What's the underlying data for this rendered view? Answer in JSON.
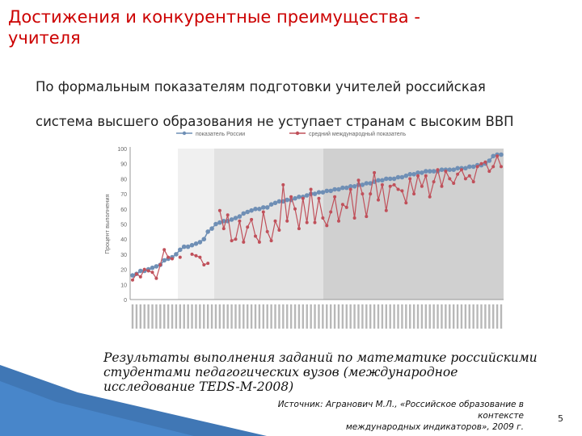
{
  "slide": {
    "title": " Достижения и конкурентные преимущества -\nучителя",
    "subtitle_line1": "По формальным показателям подготовки учителей российская",
    "subtitle_line2": "система высшего образования не уступает  странам с высоким ВВП",
    "caption": "Результаты выполнения заданий по математике российскими\nстудентами педагогических вузов (международное\nисследование TEDS-M-2008)",
    "source": "Источник: Агранович М.Л., «Российское образование в контексте\nмеждународных индикаторов», 2009 г.",
    "page_number": "5"
  },
  "colors": {
    "title": "#cc0000",
    "russia": "#6f8fb5",
    "international": "#c0505a",
    "band_light": "#f0f0f0",
    "band_mid": "#e2e2e2",
    "band_dark": "#d0d0d0",
    "decoration": "#1f5fa8"
  },
  "chart_data": {
    "type": "line",
    "ylabel": "Процент выполнения",
    "ylim": [
      0,
      100
    ],
    "yticks": [
      0,
      10,
      20,
      30,
      40,
      50,
      60,
      70,
      80,
      90,
      100
    ],
    "grid": false,
    "legend_position": "top",
    "series": [
      {
        "name": "показатель России",
        "values": [
          16,
          17,
          19,
          19,
          20,
          21,
          22,
          23,
          26,
          27,
          28,
          30,
          33,
          35,
          35,
          36,
          37,
          38,
          40,
          45,
          47,
          50,
          51,
          52,
          52,
          53,
          54,
          55,
          57,
          58,
          59,
          60,
          60,
          61,
          61,
          63,
          64,
          65,
          65,
          66,
          66,
          67,
          68,
          68,
          69,
          70,
          70,
          71,
          71,
          72,
          72,
          73,
          73,
          74,
          74,
          75,
          75,
          76,
          76,
          77,
          77,
          78,
          79,
          79,
          80,
          80,
          80,
          81,
          81,
          82,
          83,
          83,
          84,
          84,
          85,
          85,
          85,
          85,
          86,
          86,
          86,
          86,
          87,
          87,
          87,
          88,
          88,
          89,
          89,
          90,
          92,
          95,
          96,
          96
        ]
      },
      {
        "name": "средний международный показатель",
        "values": [
          13,
          17,
          15,
          20,
          19,
          18,
          14,
          23,
          33,
          28,
          27,
          null,
          28,
          null,
          null,
          30,
          29,
          28,
          23,
          24,
          null,
          null,
          59,
          47,
          56,
          39,
          40,
          52,
          38,
          48,
          53,
          42,
          38,
          58,
          45,
          39,
          52,
          46,
          76,
          52,
          68,
          60,
          47,
          67,
          51,
          73,
          51,
          67,
          54,
          49,
          58,
          68,
          52,
          63,
          61,
          73,
          54,
          79,
          70,
          55,
          70,
          84,
          66,
          76,
          59,
          75,
          76,
          73,
          72,
          64,
          80,
          70,
          82,
          75,
          82,
          68,
          78,
          86,
          75,
          85,
          80,
          77,
          83,
          86,
          80,
          82,
          78,
          88,
          90,
          91,
          85,
          88,
          95,
          88
        ]
      }
    ]
  }
}
